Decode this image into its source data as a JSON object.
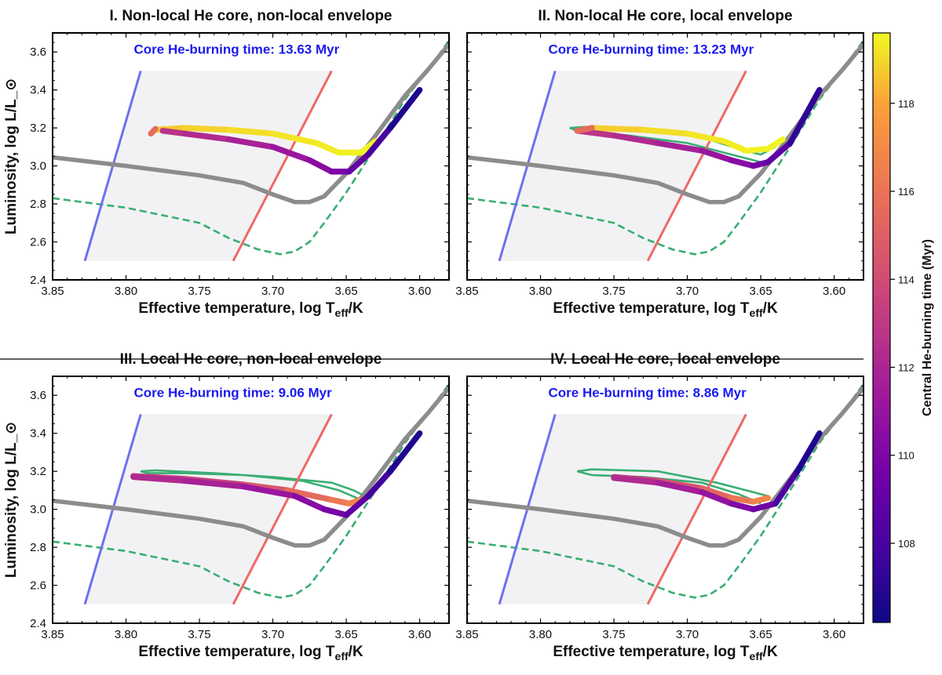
{
  "colorbar": {
    "label": "Central He-burning time (Myr)",
    "ticks": [
      108,
      110,
      112,
      114,
      116,
      118
    ],
    "range": [
      106.2,
      119.6
    ],
    "colormap": "plasma"
  },
  "colors": {
    "blue_edge": "#6f6ff0",
    "red_edge": "#f06868",
    "strip_fill": "#f2f2f4",
    "gray_track": "#8c8c8c",
    "green_track": "#3aae72",
    "note_text": "#1a1aee"
  },
  "chart_data": [
    {
      "type": "line",
      "title": "I. Non-local He core, non-local envelope",
      "xlabel": "Effective temperature, log T_eff/K",
      "ylabel": "Luminosity, log L/L_⊙",
      "xlim": [
        3.85,
        3.58
      ],
      "ylim": [
        2.4,
        3.7
      ],
      "xticks": [
        "3.85",
        "3.80",
        "3.75",
        "3.70",
        "3.65",
        "3.60"
      ],
      "yticks": [
        "2.4",
        "2.6",
        "2.8",
        "3.0",
        "3.2",
        "3.4",
        "3.6"
      ],
      "annotation": "Core He-burning time: 13.63 Myr",
      "show_xlabel": true,
      "show_ylabel": true,
      "instability_strip": {
        "blue_edge": [
          [
            3.828,
            2.5
          ],
          [
            3.79,
            3.5
          ]
        ],
        "red_edge": [
          [
            3.727,
            2.5
          ],
          [
            3.66,
            3.5
          ]
        ]
      },
      "gray_track": [
        [
          3.85,
          3.045
        ],
        [
          3.8,
          3.0
        ],
        [
          3.75,
          2.95
        ],
        [
          3.72,
          2.91
        ],
        [
          3.7,
          2.85
        ],
        [
          3.685,
          2.81
        ],
        [
          3.675,
          2.81
        ],
        [
          3.665,
          2.84
        ],
        [
          3.65,
          2.96
        ],
        [
          3.63,
          3.16
        ],
        [
          3.61,
          3.37
        ],
        [
          3.595,
          3.5
        ],
        [
          3.58,
          3.64
        ]
      ],
      "green_track": [
        [
          3.85,
          2.83
        ],
        [
          3.8,
          2.78
        ],
        [
          3.75,
          2.7
        ],
        [
          3.73,
          2.62
        ],
        [
          3.71,
          2.56
        ],
        [
          3.695,
          2.535
        ],
        [
          3.685,
          2.55
        ],
        [
          3.675,
          2.6
        ],
        [
          3.665,
          2.7
        ],
        [
          3.65,
          2.86
        ],
        [
          3.63,
          3.1
        ],
        [
          3.61,
          3.35
        ],
        [
          3.595,
          3.5
        ],
        [
          3.578,
          3.68
        ]
      ],
      "green_loop": [],
      "burning_track": [
        [
          3.78,
          3.19,
          118.6
        ],
        [
          3.76,
          3.2,
          118.8
        ],
        [
          3.73,
          3.19,
          119.0
        ],
        [
          3.7,
          3.17,
          119.2
        ],
        [
          3.67,
          3.12,
          119.3
        ],
        [
          3.655,
          3.07,
          119.4
        ],
        [
          3.64,
          3.07,
          119.5
        ],
        [
          3.63,
          3.13,
          119.5
        ],
        [
          3.775,
          3.185,
          113.0
        ],
        [
          3.76,
          3.17,
          112.5
        ],
        [
          3.73,
          3.14,
          112.0
        ],
        [
          3.7,
          3.1,
          111.5
        ],
        [
          3.675,
          3.03,
          110.8
        ],
        [
          3.66,
          2.97,
          110.2
        ],
        [
          3.648,
          2.97,
          109.6
        ],
        [
          3.635,
          3.06,
          108.5
        ],
        [
          3.62,
          3.2,
          107.3
        ],
        [
          3.6,
          3.4,
          106.2
        ]
      ],
      "burning_tail": [
        [
          3.783,
          3.17,
          112.9
        ],
        [
          3.78,
          3.195,
          118.4
        ]
      ]
    },
    {
      "type": "line",
      "title": "II. Non-local He core, local envelope",
      "xlabel": "Effective temperature, log T_eff/K",
      "ylabel": "",
      "xlim": [
        3.85,
        3.58
      ],
      "ylim": [
        2.4,
        3.7
      ],
      "xticks": [
        "3.85",
        "3.80",
        "3.75",
        "3.70",
        "3.65",
        "3.60"
      ],
      "yticks": [],
      "annotation": "Core He-burning time: 13.23 Myr",
      "show_xlabel": true,
      "show_ylabel": false,
      "instability_strip": {
        "blue_edge": [
          [
            3.828,
            2.5
          ],
          [
            3.79,
            3.5
          ]
        ],
        "red_edge": [
          [
            3.727,
            2.5
          ],
          [
            3.66,
            3.5
          ]
        ]
      },
      "gray_track": [
        [
          3.85,
          3.045
        ],
        [
          3.8,
          3.0
        ],
        [
          3.75,
          2.95
        ],
        [
          3.72,
          2.91
        ],
        [
          3.7,
          2.85
        ],
        [
          3.685,
          2.81
        ],
        [
          3.675,
          2.81
        ],
        [
          3.665,
          2.84
        ],
        [
          3.65,
          2.96
        ],
        [
          3.63,
          3.16
        ],
        [
          3.61,
          3.37
        ],
        [
          3.595,
          3.5
        ],
        [
          3.58,
          3.64
        ]
      ],
      "green_track": [
        [
          3.85,
          2.83
        ],
        [
          3.8,
          2.78
        ],
        [
          3.75,
          2.7
        ],
        [
          3.73,
          2.62
        ],
        [
          3.71,
          2.56
        ],
        [
          3.695,
          2.535
        ],
        [
          3.685,
          2.55
        ],
        [
          3.675,
          2.6
        ],
        [
          3.665,
          2.7
        ],
        [
          3.65,
          2.86
        ],
        [
          3.63,
          3.1
        ],
        [
          3.61,
          3.35
        ],
        [
          3.595,
          3.5
        ],
        [
          3.578,
          3.68
        ]
      ],
      "green_loop": [
        [
          3.65,
          3.02
        ],
        [
          3.67,
          3.06
        ],
        [
          3.7,
          3.12
        ],
        [
          3.74,
          3.16
        ],
        [
          3.775,
          3.185
        ],
        [
          3.78,
          3.2
        ],
        [
          3.77,
          3.205
        ],
        [
          3.73,
          3.2
        ],
        [
          3.69,
          3.15
        ],
        [
          3.665,
          3.09
        ],
        [
          3.65,
          3.06
        ],
        [
          3.64,
          3.1
        ]
      ],
      "burning_track": [
        [
          3.765,
          3.2,
          118.6
        ],
        [
          3.73,
          3.19,
          119.0
        ],
        [
          3.7,
          3.17,
          119.2
        ],
        [
          3.675,
          3.13,
          119.3
        ],
        [
          3.66,
          3.08,
          119.4
        ],
        [
          3.645,
          3.09,
          119.5
        ],
        [
          3.635,
          3.14,
          119.5
        ],
        [
          3.775,
          3.185,
          113.0
        ],
        [
          3.75,
          3.16,
          112.5
        ],
        [
          3.72,
          3.12,
          112.0
        ],
        [
          3.69,
          3.08,
          111.4
        ],
        [
          3.67,
          3.03,
          110.7
        ],
        [
          3.655,
          3.0,
          110.0
        ],
        [
          3.645,
          3.02,
          109.3
        ],
        [
          3.63,
          3.12,
          108.3
        ],
        [
          3.61,
          3.4,
          106.2
        ]
      ],
      "burning_tail": [
        [
          3.775,
          3.185,
          112.9
        ],
        [
          3.765,
          3.2,
          118.4
        ]
      ]
    },
    {
      "type": "line",
      "title": "III. Local He core, non-local envelope",
      "xlabel": "Effective temperature, log T_eff/K",
      "ylabel": "Luminosity, log L/L_⊙",
      "xlim": [
        3.85,
        3.58
      ],
      "ylim": [
        2.4,
        3.7
      ],
      "xticks": [
        "3.85",
        "3.80",
        "3.75",
        "3.70",
        "3.65",
        "3.60"
      ],
      "yticks": [
        "2.4",
        "2.6",
        "2.8",
        "3.0",
        "3.2",
        "3.4",
        "3.6"
      ],
      "annotation": "Core He-burning time: 9.06 Myr",
      "show_xlabel": true,
      "show_ylabel": true,
      "instability_strip": {
        "blue_edge": [
          [
            3.828,
            2.5
          ],
          [
            3.79,
            3.5
          ]
        ],
        "red_edge": [
          [
            3.727,
            2.5
          ],
          [
            3.66,
            3.5
          ]
        ]
      },
      "gray_track": [
        [
          3.85,
          3.045
        ],
        [
          3.8,
          3.0
        ],
        [
          3.75,
          2.95
        ],
        [
          3.72,
          2.91
        ],
        [
          3.7,
          2.85
        ],
        [
          3.685,
          2.81
        ],
        [
          3.675,
          2.81
        ],
        [
          3.665,
          2.84
        ],
        [
          3.65,
          2.96
        ],
        [
          3.63,
          3.16
        ],
        [
          3.61,
          3.37
        ],
        [
          3.595,
          3.5
        ],
        [
          3.58,
          3.64
        ]
      ],
      "green_track": [
        [
          3.85,
          2.83
        ],
        [
          3.8,
          2.78
        ],
        [
          3.75,
          2.7
        ],
        [
          3.73,
          2.62
        ],
        [
          3.71,
          2.56
        ],
        [
          3.695,
          2.535
        ],
        [
          3.685,
          2.55
        ],
        [
          3.675,
          2.6
        ],
        [
          3.665,
          2.7
        ],
        [
          3.65,
          2.86
        ],
        [
          3.63,
          3.1
        ],
        [
          3.61,
          3.35
        ],
        [
          3.595,
          3.5
        ],
        [
          3.578,
          3.68
        ]
      ],
      "green_loop": [
        [
          3.64,
          3.05
        ],
        [
          3.655,
          3.1
        ],
        [
          3.68,
          3.15
        ],
        [
          3.72,
          3.18
        ],
        [
          3.76,
          3.19
        ],
        [
          3.785,
          3.19
        ],
        [
          3.79,
          3.2
        ],
        [
          3.78,
          3.205
        ],
        [
          3.74,
          3.19
        ],
        [
          3.7,
          3.17
        ],
        [
          3.66,
          3.14
        ],
        [
          3.645,
          3.1
        ],
        [
          3.635,
          3.06
        ]
      ],
      "burning_track": [
        [
          3.795,
          3.175,
          112.9
        ],
        [
          3.76,
          3.16,
          113.1
        ],
        [
          3.72,
          3.13,
          114.0
        ],
        [
          3.69,
          3.1,
          115.0
        ],
        [
          3.66,
          3.05,
          116.0
        ],
        [
          3.648,
          3.03,
          116.5
        ],
        [
          3.64,
          3.05,
          117.0
        ],
        [
          3.795,
          3.17,
          112.5
        ],
        [
          3.76,
          3.15,
          112.0
        ],
        [
          3.72,
          3.12,
          111.5
        ],
        [
          3.685,
          3.07,
          110.8
        ],
        [
          3.665,
          3.0,
          110.0
        ],
        [
          3.65,
          2.97,
          109.4
        ],
        [
          3.635,
          3.07,
          108.3
        ],
        [
          3.62,
          3.2,
          107.3
        ],
        [
          3.6,
          3.4,
          106.2
        ]
      ],
      "burning_tail": []
    },
    {
      "type": "line",
      "title": "IV. Local He core, local envelope",
      "xlabel": "Effective temperature, log T_eff/K",
      "ylabel": "",
      "xlim": [
        3.85,
        3.58
      ],
      "ylim": [
        2.4,
        3.7
      ],
      "xticks": [
        "3.85",
        "3.80",
        "3.75",
        "3.70",
        "3.65",
        "3.60"
      ],
      "yticks": [],
      "annotation": "Core He-burning time: 8.86 Myr",
      "show_xlabel": true,
      "show_ylabel": false,
      "instability_strip": {
        "blue_edge": [
          [
            3.828,
            2.5
          ],
          [
            3.79,
            3.5
          ]
        ],
        "red_edge": [
          [
            3.727,
            2.5
          ],
          [
            3.66,
            3.5
          ]
        ]
      },
      "gray_track": [
        [
          3.85,
          3.045
        ],
        [
          3.8,
          3.0
        ],
        [
          3.75,
          2.95
        ],
        [
          3.72,
          2.91
        ],
        [
          3.7,
          2.85
        ],
        [
          3.685,
          2.81
        ],
        [
          3.675,
          2.81
        ],
        [
          3.665,
          2.84
        ],
        [
          3.65,
          2.96
        ],
        [
          3.63,
          3.16
        ],
        [
          3.61,
          3.37
        ],
        [
          3.595,
          3.5
        ],
        [
          3.58,
          3.64
        ]
      ],
      "green_track": [
        [
          3.85,
          2.83
        ],
        [
          3.8,
          2.78
        ],
        [
          3.75,
          2.7
        ],
        [
          3.73,
          2.62
        ],
        [
          3.71,
          2.56
        ],
        [
          3.695,
          2.535
        ],
        [
          3.685,
          2.55
        ],
        [
          3.675,
          2.6
        ],
        [
          3.665,
          2.7
        ],
        [
          3.65,
          2.86
        ],
        [
          3.63,
          3.1
        ],
        [
          3.61,
          3.35
        ],
        [
          3.595,
          3.5
        ],
        [
          3.578,
          3.68
        ]
      ],
      "green_loop": [
        [
          3.65,
          3.03
        ],
        [
          3.665,
          3.08
        ],
        [
          3.69,
          3.14
        ],
        [
          3.73,
          3.17
        ],
        [
          3.765,
          3.18
        ],
        [
          3.775,
          3.2
        ],
        [
          3.765,
          3.21
        ],
        [
          3.72,
          3.2
        ],
        [
          3.68,
          3.14
        ],
        [
          3.66,
          3.1
        ],
        [
          3.645,
          3.07
        ]
      ],
      "burning_track": [
        [
          3.75,
          3.17,
          113.0
        ],
        [
          3.72,
          3.15,
          113.8
        ],
        [
          3.69,
          3.11,
          114.8
        ],
        [
          3.67,
          3.06,
          115.8
        ],
        [
          3.655,
          3.04,
          116.5
        ],
        [
          3.645,
          3.06,
          117.0
        ],
        [
          3.75,
          3.165,
          112.5
        ],
        [
          3.72,
          3.14,
          112.0
        ],
        [
          3.69,
          3.09,
          111.3
        ],
        [
          3.67,
          3.03,
          110.5
        ],
        [
          3.655,
          3.0,
          109.8
        ],
        [
          3.64,
          3.03,
          109.0
        ],
        [
          3.625,
          3.2,
          107.3
        ],
        [
          3.61,
          3.4,
          106.2
        ]
      ],
      "burning_tail": []
    }
  ]
}
